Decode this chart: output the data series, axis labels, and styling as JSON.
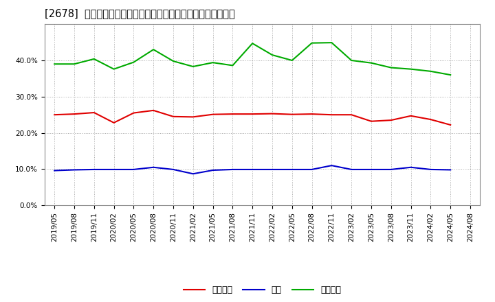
{
  "title": "[2678]  売上債権、在庫、買入債務の総資産に対する比率の推移",
  "xlabel_dates": [
    "2019/05",
    "2019/08",
    "2019/11",
    "2020/02",
    "2020/05",
    "2020/08",
    "2020/11",
    "2021/02",
    "2021/05",
    "2021/08",
    "2021/11",
    "2022/02",
    "2022/05",
    "2022/08",
    "2022/11",
    "2023/02",
    "2023/05",
    "2023/08",
    "2023/11",
    "2024/02",
    "2024/05",
    "2024/08"
  ],
  "receivables": [
    0.25,
    0.252,
    0.256,
    0.228,
    0.255,
    0.262,
    0.245,
    0.244,
    0.251,
    0.252,
    0.252,
    0.253,
    0.251,
    0.252,
    0.25,
    0.25,
    0.232,
    0.235,
    0.247,
    0.237,
    0.222,
    null
  ],
  "inventory": [
    0.096,
    0.098,
    0.099,
    0.099,
    0.099,
    0.105,
    0.099,
    0.087,
    0.097,
    0.099,
    0.099,
    0.099,
    0.099,
    0.099,
    0.11,
    0.099,
    0.099,
    0.099,
    0.105,
    0.099,
    0.098,
    null
  ],
  "payables": [
    0.39,
    0.39,
    0.404,
    0.376,
    0.395,
    0.43,
    0.398,
    0.383,
    0.394,
    0.386,
    0.447,
    0.415,
    0.4,
    0.448,
    0.449,
    0.4,
    0.393,
    0.38,
    0.376,
    0.37,
    0.36,
    null
  ],
  "receivables_color": "#e00000",
  "inventory_color": "#0000cc",
  "payables_color": "#00aa00",
  "legend_labels": [
    "売上債権",
    "在庫",
    "買入債務"
  ],
  "ylim": [
    0.0,
    0.5
  ],
  "yticks": [
    0.0,
    0.1,
    0.2,
    0.3,
    0.4
  ],
  "background_color": "#ffffff",
  "grid_color": "#aaaaaa",
  "title_fontsize": 10.5,
  "tick_fontsize": 7.5,
  "legend_fontsize": 9
}
